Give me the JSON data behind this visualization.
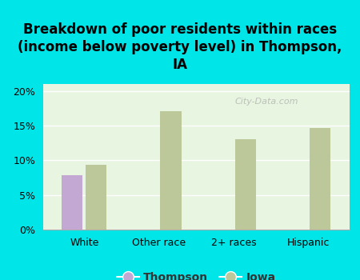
{
  "title": "Breakdown of poor residents within races\n(income below poverty level) in Thompson,\nIA",
  "categories": [
    "White",
    "Other race",
    "2+ races",
    "Hispanic"
  ],
  "thompson_values": [
    7.8,
    0,
    0,
    0
  ],
  "iowa_values": [
    9.3,
    17.1,
    13.0,
    14.7
  ],
  "thompson_color": "#c4a8d4",
  "iowa_color": "#bcc89a",
  "background_color": "#00e5e8",
  "plot_bg_top": "#e8f5e0",
  "plot_bg_bottom": "#f8fff4",
  "ylim": [
    0,
    21
  ],
  "yticks": [
    0,
    5,
    10,
    15,
    20
  ],
  "ytick_labels": [
    "0%",
    "5%",
    "10%",
    "15%",
    "20%"
  ],
  "bar_width": 0.28,
  "legend_labels": [
    "Thompson",
    "Iowa"
  ],
  "watermark": "City-Data.com",
  "title_fontsize": 12,
  "axis_fontsize": 9,
  "legend_fontsize": 10
}
